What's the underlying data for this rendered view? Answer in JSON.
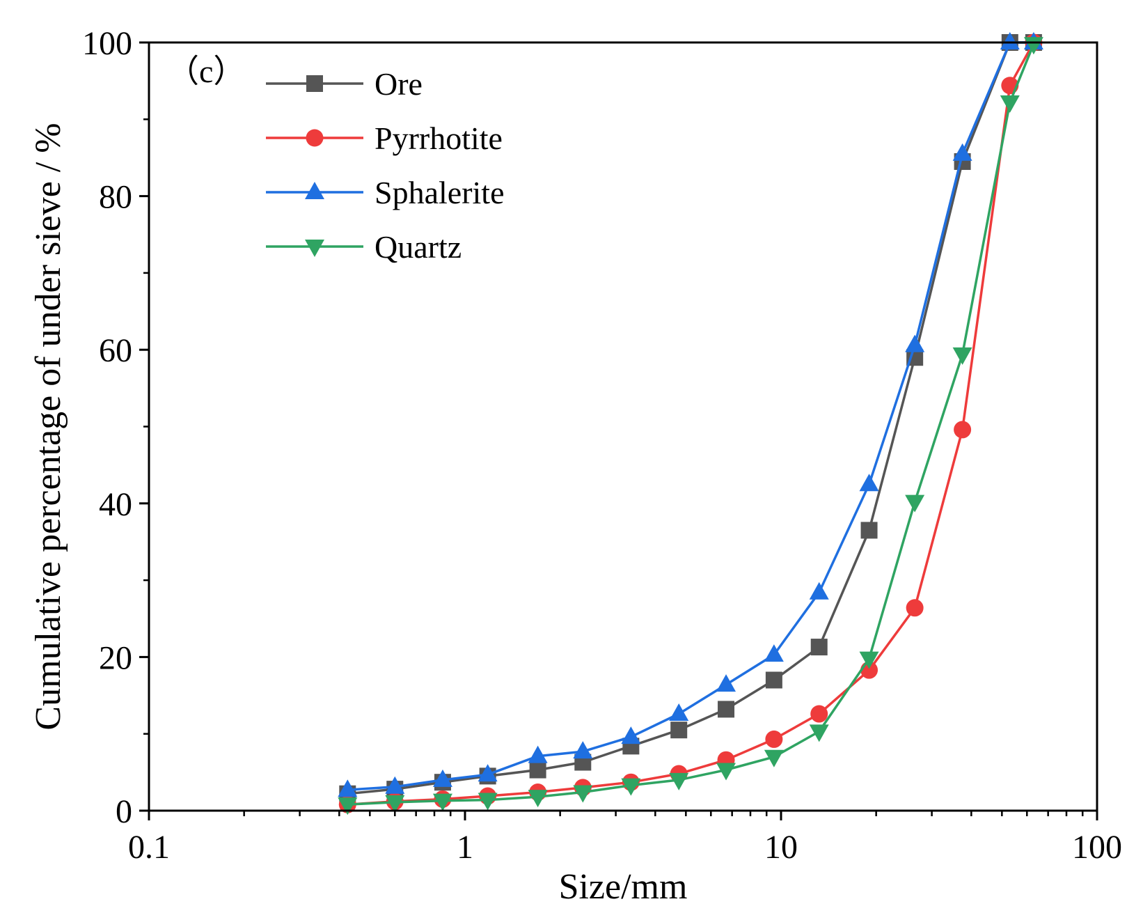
{
  "chart_data": {
    "type": "line",
    "panel_label": "（c）",
    "xlabel": "Size/mm",
    "ylabel": "Cumulative percentage of under sieve / %",
    "xscale": "log",
    "xlim": [
      0.1,
      100
    ],
    "ylim": [
      0,
      100
    ],
    "x_ticks": [
      {
        "value": 0.1,
        "label": "0.1"
      },
      {
        "value": 1,
        "label": "1"
      },
      {
        "value": 10,
        "label": "10"
      },
      {
        "value": 100,
        "label": "100"
      }
    ],
    "y_ticks": [
      {
        "value": 0,
        "label": "0"
      },
      {
        "value": 20,
        "label": "20"
      },
      {
        "value": 40,
        "label": "40"
      },
      {
        "value": 60,
        "label": "60"
      },
      {
        "value": 80,
        "label": "80"
      },
      {
        "value": 100,
        "label": "100"
      }
    ],
    "grid": false,
    "legend_position": "top-left",
    "series": [
      {
        "name": "Ore",
        "color": "#555555",
        "marker": "square",
        "points": [
          [
            0.425,
            2.2
          ],
          [
            0.6,
            2.8
          ],
          [
            0.85,
            3.7
          ],
          [
            1.18,
            4.5
          ],
          [
            1.7,
            5.3
          ],
          [
            2.36,
            6.3
          ],
          [
            3.35,
            8.4
          ],
          [
            4.75,
            10.5
          ],
          [
            6.7,
            13.2
          ],
          [
            9.5,
            17.0
          ],
          [
            13.2,
            21.3
          ],
          [
            19,
            36.5
          ],
          [
            26.5,
            59.0
          ],
          [
            37.5,
            84.5
          ],
          [
            53,
            100
          ],
          [
            63,
            100
          ]
        ]
      },
      {
        "name": "Pyrrhotite",
        "color": "#ee3b3b",
        "marker": "circle",
        "points": [
          [
            0.425,
            0.8
          ],
          [
            0.6,
            1.2
          ],
          [
            0.85,
            1.5
          ],
          [
            1.18,
            1.9
          ],
          [
            1.7,
            2.4
          ],
          [
            2.36,
            3.0
          ],
          [
            3.35,
            3.7
          ],
          [
            4.75,
            4.8
          ],
          [
            6.7,
            6.6
          ],
          [
            9.5,
            9.3
          ],
          [
            13.2,
            12.6
          ],
          [
            19,
            18.3
          ],
          [
            26.5,
            26.4
          ],
          [
            37.5,
            49.6
          ],
          [
            53,
            94.4
          ],
          [
            63,
            100
          ]
        ]
      },
      {
        "name": "Sphalerite",
        "color": "#1f6fe0",
        "marker": "triangle-up",
        "points": [
          [
            0.425,
            2.7
          ],
          [
            0.6,
            3.1
          ],
          [
            0.85,
            4.0
          ],
          [
            1.18,
            4.7
          ],
          [
            1.7,
            7.1
          ],
          [
            2.36,
            7.7
          ],
          [
            3.35,
            9.6
          ],
          [
            4.75,
            12.6
          ],
          [
            6.7,
            16.4
          ],
          [
            9.5,
            20.3
          ],
          [
            13.2,
            28.4
          ],
          [
            19,
            42.5
          ],
          [
            26.5,
            60.6
          ],
          [
            37.5,
            85.5
          ],
          [
            53,
            100
          ],
          [
            63,
            100
          ]
        ]
      },
      {
        "name": "Quartz",
        "color": "#2fa462",
        "marker": "triangle-down",
        "points": [
          [
            0.425,
            0.8
          ],
          [
            0.6,
            1.1
          ],
          [
            0.85,
            1.3
          ],
          [
            1.18,
            1.4
          ],
          [
            1.7,
            1.8
          ],
          [
            2.36,
            2.4
          ],
          [
            3.35,
            3.3
          ],
          [
            4.75,
            4.0
          ],
          [
            6.7,
            5.3
          ],
          [
            9.5,
            7.0
          ],
          [
            13.2,
            10.3
          ],
          [
            19,
            19.8
          ],
          [
            26.5,
            40.2
          ],
          [
            37.5,
            59.4
          ],
          [
            53,
            92.2
          ],
          [
            63,
            99.8
          ]
        ]
      }
    ]
  }
}
